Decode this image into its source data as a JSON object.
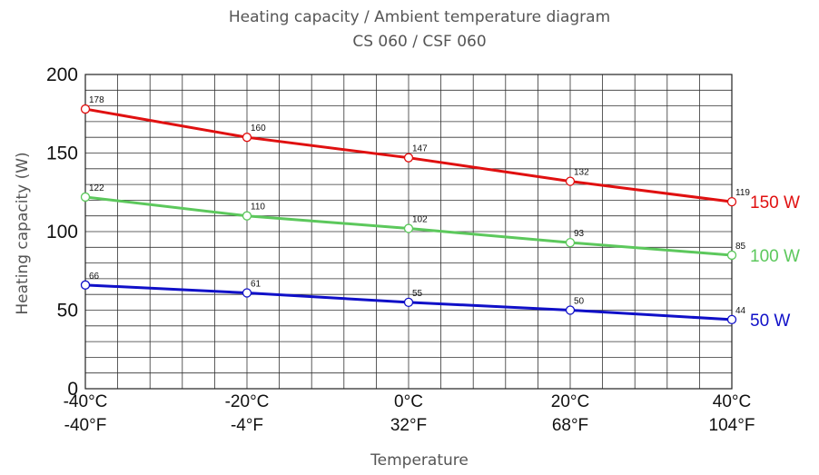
{
  "chart_data": {
    "type": "line",
    "title": "Heating capacity / Ambient temperature diagram",
    "subtitle": "CS 060 / CSF 060",
    "xlabel": "Temperature",
    "ylabel": "Heating capacity (W)",
    "x": [
      -40,
      -20,
      0,
      20,
      40
    ],
    "x_tick_labels_c": [
      "-40°C",
      "-20°C",
      "0°C",
      "20°C",
      "40°C"
    ],
    "x_tick_labels_f": [
      "-40°F",
      "-4°F",
      "32°F",
      "68°F",
      "104°F"
    ],
    "xlim": [
      -40,
      40
    ],
    "ylim": [
      0,
      200
    ],
    "y_ticks": [
      0,
      50,
      100,
      150,
      200
    ],
    "grid": true,
    "series": [
      {
        "name": "150 W",
        "color": "#e01010",
        "values": [
          178,
          160,
          147,
          132,
          119
        ]
      },
      {
        "name": "100 W",
        "color": "#5cc85c",
        "values": [
          122,
          110,
          102,
          93,
          85
        ]
      },
      {
        "name": "50 W",
        "color": "#1010c8",
        "values": [
          66,
          61,
          55,
          50,
          44
        ]
      }
    ]
  }
}
